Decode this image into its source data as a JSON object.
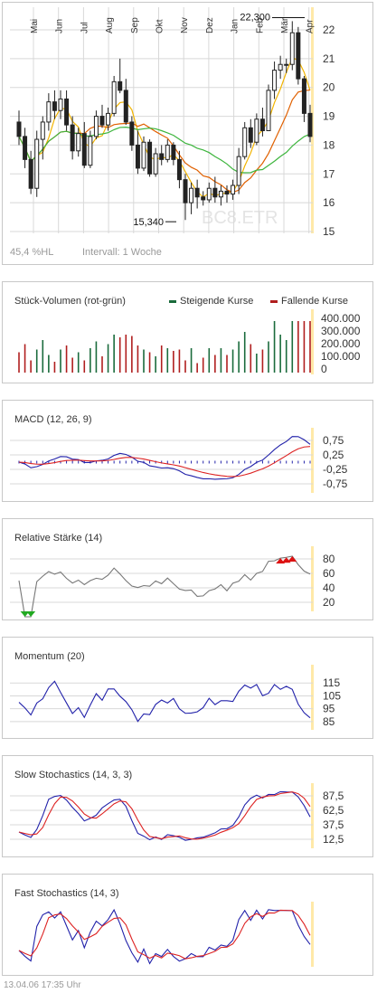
{
  "footer": "13.04.06    17:35 Uhr",
  "colors": {
    "up": "#1a6b3c",
    "down": "#b01e1e",
    "grid": "#d8d8d8",
    "sma_fast": "#f2b400",
    "sma_mid": "#e06000",
    "sma_slow": "#3db53d",
    "macd": "#2222aa",
    "signal": "#dd2222",
    "highlight": "#ffe9a8"
  },
  "price_panel": {
    "months": [
      "Mai",
      "Jun",
      "Jul",
      "Aug",
      "Sep",
      "Okt",
      "Nov",
      "Dez",
      "Jan",
      "Feb",
      "Mär",
      "Apr"
    ],
    "y_ticks": [
      "22",
      "21",
      "20",
      "19",
      "18",
      "17",
      "16",
      "15"
    ],
    "high_label": "22,300",
    "low_label": "15,340",
    "watermark": "BC8.ETR",
    "footer_left": "45,4 %HL",
    "footer_right": "Intervall: 1 Woche"
  },
  "volume_panel": {
    "title": "Stück-Volumen (rot-grün)",
    "legend_up": "Steigende Kurse",
    "legend_down": "Fallende Kurse",
    "y_ticks": [
      "400.000",
      "300.000",
      "200.000",
      "100.000",
      "0"
    ]
  },
  "macd_panel": {
    "title": "MACD (12, 26, 9)",
    "y_ticks": [
      "0,75",
      "0,25",
      "-0,25",
      "-0,75"
    ]
  },
  "rsi_panel": {
    "title": "Relative Stärke (14)",
    "y_ticks": [
      "80",
      "60",
      "40",
      "20"
    ]
  },
  "momentum_panel": {
    "title": "Momentum (20)",
    "y_ticks": [
      "115",
      "105",
      "95",
      "85"
    ]
  },
  "slowsto_panel": {
    "title": "Slow Stochastics (14, 3, 3)",
    "y_ticks": [
      "87,5",
      "62,5",
      "37,5",
      "12,5"
    ]
  },
  "faststo_panel": {
    "title": "Fast Stochastics (14, 3)"
  },
  "chart_data": [
    {
      "type": "candlestick",
      "title": "",
      "ylim": [
        15,
        22.5
      ],
      "high_marker": 22.3,
      "low_marker": 15.34,
      "ohlc": [
        [
          18.8,
          19.2,
          18.0,
          18.3
        ],
        [
          18.3,
          18.6,
          17.2,
          17.5
        ],
        [
          17.5,
          17.8,
          16.3,
          16.5
        ],
        [
          16.5,
          18.5,
          16.2,
          18.2
        ],
        [
          18.2,
          19.0,
          17.5,
          18.8
        ],
        [
          18.8,
          19.8,
          18.5,
          19.5
        ],
        [
          19.5,
          19.9,
          18.9,
          19.2
        ],
        [
          19.2,
          19.9,
          18.9,
          19.6
        ],
        [
          19.6,
          19.9,
          18.5,
          18.7
        ],
        [
          18.7,
          19.0,
          17.5,
          17.8
        ],
        [
          17.8,
          18.6,
          17.6,
          18.4
        ],
        [
          18.4,
          18.8,
          17.2,
          17.3
        ],
        [
          17.3,
          18.5,
          17.2,
          18.3
        ],
        [
          18.3,
          19.2,
          18.2,
          19.0
        ],
        [
          19.0,
          19.4,
          18.6,
          18.7
        ],
        [
          18.7,
          19.3,
          18.5,
          19.1
        ],
        [
          19.1,
          20.4,
          19.0,
          20.2
        ],
        [
          20.2,
          21.0,
          19.8,
          19.9
        ],
        [
          19.9,
          20.3,
          18.7,
          18.8
        ],
        [
          18.8,
          19.0,
          17.8,
          18.0
        ],
        [
          18.0,
          18.5,
          17.0,
          17.2
        ],
        [
          17.2,
          18.3,
          17.1,
          18.1
        ],
        [
          18.1,
          18.2,
          16.9,
          17.0
        ],
        [
          17.0,
          17.9,
          16.9,
          17.7
        ],
        [
          17.7,
          18.0,
          17.3,
          17.5
        ],
        [
          17.5,
          18.2,
          17.4,
          18.0
        ],
        [
          18.0,
          18.1,
          17.3,
          17.5
        ],
        [
          17.5,
          17.8,
          16.5,
          16.8
        ],
        [
          16.8,
          17.0,
          15.4,
          16.0
        ],
        [
          16.0,
          16.7,
          15.6,
          16.5
        ],
        [
          16.5,
          16.8,
          15.8,
          16.2
        ],
        [
          16.2,
          16.4,
          15.9,
          16.1
        ],
        [
          16.1,
          16.7,
          16.0,
          16.5
        ],
        [
          16.5,
          16.9,
          16.0,
          16.2
        ],
        [
          16.2,
          16.6,
          15.9,
          16.4
        ],
        [
          16.4,
          16.6,
          16.0,
          16.3
        ],
        [
          16.3,
          16.8,
          16.1,
          16.6
        ],
        [
          16.6,
          17.9,
          16.3,
          17.6
        ],
        [
          17.6,
          18.8,
          17.5,
          18.6
        ],
        [
          18.6,
          18.9,
          17.9,
          18.1
        ],
        [
          18.1,
          19.1,
          18.0,
          18.9
        ],
        [
          18.9,
          19.3,
          18.3,
          18.5
        ],
        [
          18.5,
          20.1,
          18.5,
          19.9
        ],
        [
          19.9,
          20.9,
          19.6,
          20.6
        ],
        [
          20.6,
          21.1,
          20.3,
          20.8
        ],
        [
          20.8,
          21.0,
          20.5,
          20.8
        ],
        [
          20.8,
          22.3,
          20.6,
          21.9
        ],
        [
          21.9,
          22.1,
          20.1,
          20.3
        ],
        [
          20.3,
          20.4,
          18.8,
          19.1
        ],
        [
          19.1,
          19.4,
          18.1,
          18.3
        ]
      ]
    },
    {
      "type": "bar",
      "title": "Stück-Volumen (rot-grün)",
      "ylim": [
        0,
        400000
      ],
      "values": [
        150000,
        210000,
        90000,
        170000,
        240000,
        130000,
        80000,
        170000,
        200000,
        110000,
        150000,
        90000,
        180000,
        230000,
        120000,
        210000,
        280000,
        260000,
        280000,
        270000,
        200000,
        170000,
        150000,
        120000,
        200000,
        180000,
        160000,
        170000,
        90000,
        180000,
        70000,
        110000,
        180000,
        130000,
        180000,
        130000,
        170000,
        230000,
        300000,
        210000,
        140000,
        170000,
        230000,
        380000,
        280000,
        240000,
        380000,
        380000,
        380000,
        380000
      ]
    },
    {
      "type": "line",
      "title": "MACD (12, 26, 9)",
      "ylim": [
        -1.0,
        1.0
      ]
    },
    {
      "type": "line",
      "title": "Relative Stärke (14)",
      "ylim": [
        0,
        100
      ]
    },
    {
      "type": "line",
      "title": "Momentum (20)",
      "ylim": [
        80,
        125
      ]
    },
    {
      "type": "line",
      "title": "Slow Stochastics (14, 3, 3)",
      "ylim": [
        0,
        100
      ]
    },
    {
      "type": "line",
      "title": "Fast Stochastics (14, 3)",
      "ylim": [
        0,
        100
      ]
    }
  ]
}
